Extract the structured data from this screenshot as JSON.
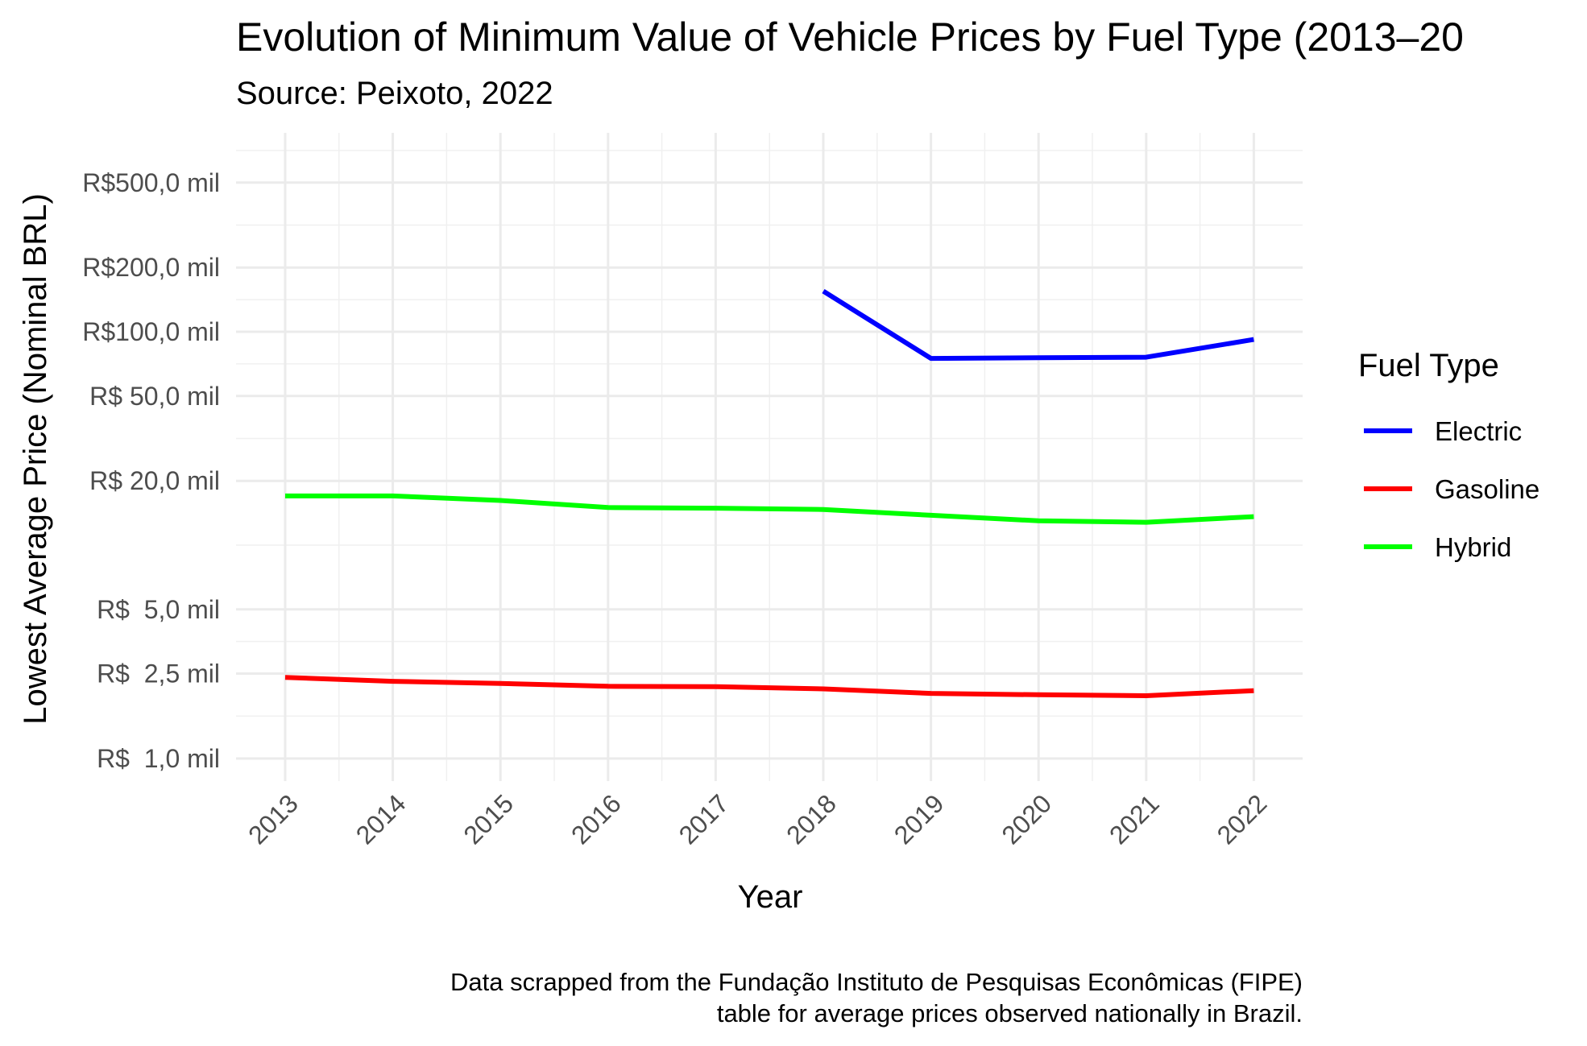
{
  "chart_data": {
    "type": "line",
    "title": "Evolution of Minimum Value of Vehicle Prices by Fuel Type (2013–20",
    "subtitle": "Source: Peixoto, 2022",
    "xlabel": "Year",
    "ylabel": "Lowest Average Price (Nominal BRL)",
    "caption": [
      "Data scrapped from the Fundação Instituto de Pesquisas Econômicas (FIPE)",
      "table for average prices observed nationally in Brazil."
    ],
    "y_scale": "log",
    "y_ticks": [
      {
        "value": 1000,
        "label": "R$  1,0 mil"
      },
      {
        "value": 2500,
        "label": "R$  2,5 mil"
      },
      {
        "value": 5000,
        "label": "R$  5,0 mil"
      },
      {
        "value": 20000,
        "label": "R$ 20,0 mil"
      },
      {
        "value": 50000,
        "label": "R$ 50,0 mil"
      },
      {
        "value": 100000,
        "label": "R$100,0 mil"
      },
      {
        "value": 200000,
        "label": "R$200,0 mil"
      },
      {
        "value": 500000,
        "label": "R$500,0 mil"
      }
    ],
    "x": [
      2013,
      2014,
      2015,
      2016,
      2017,
      2018,
      2019,
      2020,
      2021,
      2022
    ],
    "legend_title": "Fuel Type",
    "legend_position": "right",
    "grid": true,
    "series": [
      {
        "name": "Electric",
        "color": "#0000ff",
        "x": [
          2018,
          2019,
          2020,
          2021,
          2022
        ],
        "values": [
          155000,
          75000,
          75500,
          76000,
          92000
        ]
      },
      {
        "name": "Gasoline",
        "color": "#ff0000",
        "x": [
          2013,
          2014,
          2015,
          2016,
          2017,
          2018,
          2019,
          2020,
          2021,
          2022
        ],
        "values": [
          2400,
          2300,
          2250,
          2180,
          2170,
          2120,
          2020,
          1990,
          1970,
          2080
        ]
      },
      {
        "name": "Hybrid",
        "color": "#00ff00",
        "x": [
          2013,
          2014,
          2015,
          2016,
          2017,
          2018,
          2019,
          2020,
          2021,
          2022
        ],
        "values": [
          17000,
          17000,
          16200,
          15000,
          14900,
          14700,
          13800,
          13000,
          12800,
          13600
        ]
      }
    ]
  }
}
